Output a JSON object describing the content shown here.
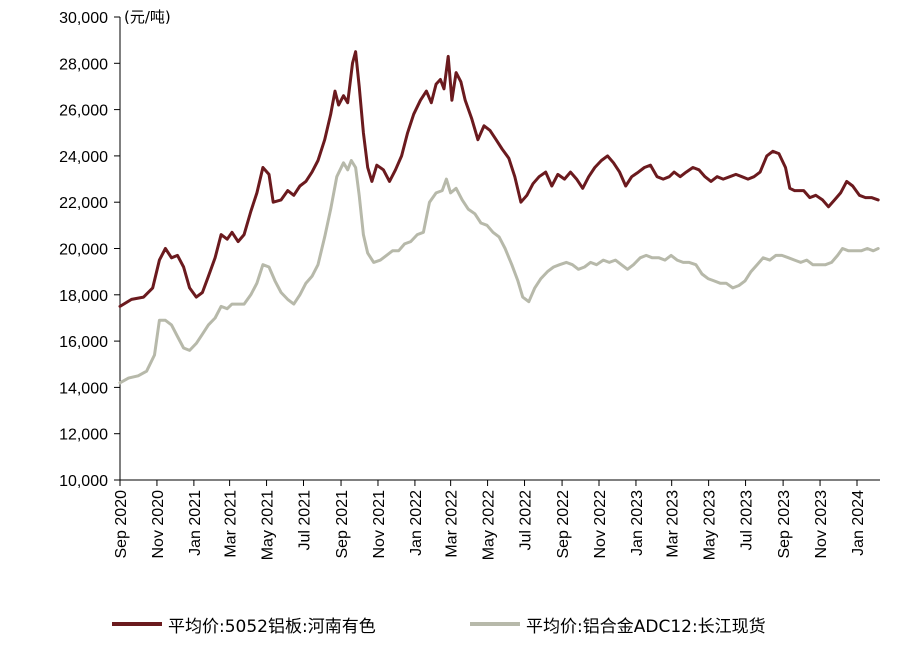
{
  "chart_data": {
    "type": "line",
    "unit_label": "(元/吨)",
    "ylim": [
      10000,
      30000
    ],
    "y_ticks": [
      10000,
      12000,
      14000,
      16000,
      18000,
      20000,
      22000,
      24000,
      26000,
      28000,
      30000
    ],
    "y_tick_labels": [
      "10,000",
      "12,000",
      "14,000",
      "16,000",
      "18,000",
      "20,000",
      "22,000",
      "24,000",
      "26,000",
      "28,000",
      "30,000"
    ],
    "x_ticks": [
      "2020-09",
      "2020-11",
      "2021-01",
      "2021-03",
      "2021-05",
      "2021-07",
      "2021-09",
      "2021-11",
      "2022-01",
      "2022-03",
      "2022-05",
      "2022-07",
      "2022-09",
      "2022-11",
      "2023-01",
      "2023-03",
      "2023-05",
      "2023-07",
      "2023-09",
      "2023-11",
      "2024-01"
    ],
    "x_tick_labels": [
      "Sep 2020",
      "Nov 2020",
      "Jan 2021",
      "Mar 2021",
      "May 2021",
      "Jul 2021",
      "Sep 2021",
      "Nov 2021",
      "Jan 2022",
      "Mar 2022",
      "May 2022",
      "Jul 2022",
      "Sep 2022",
      "Nov 2022",
      "Jan 2023",
      "Mar 2023",
      "May 2023",
      "Jul 2023",
      "Sep 2023",
      "Nov 2023",
      "Jan 2024"
    ],
    "legend_position": "bottom",
    "grid": false,
    "series": [
      {
        "name": "平均价:5052铝板:河南有色",
        "color": "#6b1a1e",
        "points": [
          [
            "2020-09-01",
            17500
          ],
          [
            "2020-09-20",
            17800
          ],
          [
            "2020-10-10",
            17900
          ],
          [
            "2020-10-25",
            18300
          ],
          [
            "2020-11-05",
            19500
          ],
          [
            "2020-11-15",
            20000
          ],
          [
            "2020-11-25",
            19600
          ],
          [
            "2020-12-05",
            19700
          ],
          [
            "2020-12-15",
            19200
          ],
          [
            "2020-12-25",
            18300
          ],
          [
            "2021-01-05",
            17900
          ],
          [
            "2021-01-15",
            18100
          ],
          [
            "2021-01-25",
            18800
          ],
          [
            "2021-02-05",
            19600
          ],
          [
            "2021-02-15",
            20600
          ],
          [
            "2021-02-25",
            20400
          ],
          [
            "2021-03-05",
            20700
          ],
          [
            "2021-03-15",
            20300
          ],
          [
            "2021-03-25",
            20600
          ],
          [
            "2021-04-05",
            21600
          ],
          [
            "2021-04-15",
            22400
          ],
          [
            "2021-04-25",
            23500
          ],
          [
            "2021-05-05",
            23200
          ],
          [
            "2021-05-12",
            22000
          ],
          [
            "2021-05-25",
            22100
          ],
          [
            "2021-06-05",
            22500
          ],
          [
            "2021-06-15",
            22300
          ],
          [
            "2021-06-25",
            22700
          ],
          [
            "2021-07-05",
            22900
          ],
          [
            "2021-07-15",
            23300
          ],
          [
            "2021-07-25",
            23800
          ],
          [
            "2021-08-05",
            24700
          ],
          [
            "2021-08-15",
            25800
          ],
          [
            "2021-08-22",
            26800
          ],
          [
            "2021-08-28",
            26200
          ],
          [
            "2021-09-05",
            26600
          ],
          [
            "2021-09-12",
            26300
          ],
          [
            "2021-09-20",
            28000
          ],
          [
            "2021-09-25",
            28500
          ],
          [
            "2021-10-01",
            27000
          ],
          [
            "2021-10-08",
            25000
          ],
          [
            "2021-10-15",
            23500
          ],
          [
            "2021-10-22",
            22900
          ],
          [
            "2021-10-30",
            23600
          ],
          [
            "2021-11-10",
            23400
          ],
          [
            "2021-11-20",
            22900
          ],
          [
            "2021-11-30",
            23400
          ],
          [
            "2021-12-10",
            24000
          ],
          [
            "2021-12-20",
            25000
          ],
          [
            "2021-12-30",
            25800
          ],
          [
            "2022-01-10",
            26400
          ],
          [
            "2022-01-20",
            26800
          ],
          [
            "2022-01-28",
            26300
          ],
          [
            "2022-02-05",
            27100
          ],
          [
            "2022-02-12",
            27300
          ],
          [
            "2022-02-18",
            26900
          ],
          [
            "2022-02-25",
            28300
          ],
          [
            "2022-03-03",
            26400
          ],
          [
            "2022-03-10",
            27600
          ],
          [
            "2022-03-18",
            27200
          ],
          [
            "2022-03-25",
            26400
          ],
          [
            "2022-04-05",
            25600
          ],
          [
            "2022-04-15",
            24700
          ],
          [
            "2022-04-25",
            25300
          ],
          [
            "2022-05-05",
            25100
          ],
          [
            "2022-05-15",
            24700
          ],
          [
            "2022-05-25",
            24300
          ],
          [
            "2022-06-05",
            23900
          ],
          [
            "2022-06-15",
            23100
          ],
          [
            "2022-06-25",
            22000
          ],
          [
            "2022-07-05",
            22300
          ],
          [
            "2022-07-15",
            22800
          ],
          [
            "2022-07-25",
            23100
          ],
          [
            "2022-08-05",
            23300
          ],
          [
            "2022-08-15",
            22700
          ],
          [
            "2022-08-25",
            23200
          ],
          [
            "2022-09-05",
            23000
          ],
          [
            "2022-09-15",
            23300
          ],
          [
            "2022-09-25",
            23000
          ],
          [
            "2022-10-05",
            22600
          ],
          [
            "2022-10-15",
            23100
          ],
          [
            "2022-10-25",
            23500
          ],
          [
            "2022-11-05",
            23800
          ],
          [
            "2022-11-15",
            24000
          ],
          [
            "2022-11-25",
            23700
          ],
          [
            "2022-12-05",
            23300
          ],
          [
            "2022-12-15",
            22700
          ],
          [
            "2022-12-25",
            23100
          ],
          [
            "2023-01-05",
            23300
          ],
          [
            "2023-01-15",
            23500
          ],
          [
            "2023-01-25",
            23600
          ],
          [
            "2023-02-05",
            23100
          ],
          [
            "2023-02-15",
            23000
          ],
          [
            "2023-02-25",
            23100
          ],
          [
            "2023-03-05",
            23300
          ],
          [
            "2023-03-15",
            23100
          ],
          [
            "2023-03-25",
            23300
          ],
          [
            "2023-04-05",
            23500
          ],
          [
            "2023-04-15",
            23400
          ],
          [
            "2023-04-25",
            23100
          ],
          [
            "2023-05-05",
            22900
          ],
          [
            "2023-05-15",
            23100
          ],
          [
            "2023-05-25",
            23000
          ],
          [
            "2023-06-05",
            23100
          ],
          [
            "2023-06-15",
            23200
          ],
          [
            "2023-06-25",
            23100
          ],
          [
            "2023-07-05",
            23000
          ],
          [
            "2023-07-15",
            23100
          ],
          [
            "2023-07-25",
            23300
          ],
          [
            "2023-08-05",
            24000
          ],
          [
            "2023-08-15",
            24200
          ],
          [
            "2023-08-25",
            24100
          ],
          [
            "2023-09-05",
            23500
          ],
          [
            "2023-09-12",
            22600
          ],
          [
            "2023-09-20",
            22500
          ],
          [
            "2023-10-05",
            22500
          ],
          [
            "2023-10-15",
            22200
          ],
          [
            "2023-10-25",
            22300
          ],
          [
            "2023-11-05",
            22100
          ],
          [
            "2023-11-15",
            21800
          ],
          [
            "2023-11-25",
            22100
          ],
          [
            "2023-12-05",
            22400
          ],
          [
            "2023-12-15",
            22900
          ],
          [
            "2023-12-25",
            22700
          ],
          [
            "2024-01-05",
            22300
          ],
          [
            "2024-01-15",
            22200
          ],
          [
            "2024-01-25",
            22200
          ],
          [
            "2024-02-05",
            22100
          ]
        ]
      },
      {
        "name": "平均价:铝合金ADC12:长江现货",
        "color": "#b7b9aa",
        "points": [
          [
            "2020-09-01",
            14200
          ],
          [
            "2020-09-15",
            14400
          ],
          [
            "2020-10-01",
            14500
          ],
          [
            "2020-10-15",
            14700
          ],
          [
            "2020-10-28",
            15400
          ],
          [
            "2020-11-05",
            16900
          ],
          [
            "2020-11-15",
            16900
          ],
          [
            "2020-11-25",
            16700
          ],
          [
            "2020-12-05",
            16200
          ],
          [
            "2020-12-15",
            15700
          ],
          [
            "2020-12-25",
            15600
          ],
          [
            "2021-01-05",
            15900
          ],
          [
            "2021-01-15",
            16300
          ],
          [
            "2021-01-25",
            16700
          ],
          [
            "2021-02-05",
            17000
          ],
          [
            "2021-02-15",
            17500
          ],
          [
            "2021-02-25",
            17400
          ],
          [
            "2021-03-05",
            17600
          ],
          [
            "2021-03-15",
            17600
          ],
          [
            "2021-03-25",
            17600
          ],
          [
            "2021-04-05",
            18000
          ],
          [
            "2021-04-15",
            18500
          ],
          [
            "2021-04-25",
            19300
          ],
          [
            "2021-05-05",
            19200
          ],
          [
            "2021-05-15",
            18600
          ],
          [
            "2021-05-25",
            18100
          ],
          [
            "2021-06-05",
            17800
          ],
          [
            "2021-06-15",
            17600
          ],
          [
            "2021-06-25",
            18000
          ],
          [
            "2021-07-05",
            18500
          ],
          [
            "2021-07-15",
            18800
          ],
          [
            "2021-07-25",
            19300
          ],
          [
            "2021-08-05",
            20500
          ],
          [
            "2021-08-15",
            21700
          ],
          [
            "2021-08-25",
            23100
          ],
          [
            "2021-09-05",
            23700
          ],
          [
            "2021-09-12",
            23400
          ],
          [
            "2021-09-18",
            23800
          ],
          [
            "2021-09-25",
            23500
          ],
          [
            "2021-10-01",
            22300
          ],
          [
            "2021-10-08",
            20600
          ],
          [
            "2021-10-15",
            19800
          ],
          [
            "2021-10-25",
            19400
          ],
          [
            "2021-11-05",
            19500
          ],
          [
            "2021-11-15",
            19700
          ],
          [
            "2021-11-25",
            19900
          ],
          [
            "2021-12-05",
            19900
          ],
          [
            "2021-12-15",
            20200
          ],
          [
            "2021-12-25",
            20300
          ],
          [
            "2022-01-05",
            20600
          ],
          [
            "2022-01-15",
            20700
          ],
          [
            "2022-01-25",
            22000
          ],
          [
            "2022-02-05",
            22400
          ],
          [
            "2022-02-15",
            22500
          ],
          [
            "2022-02-22",
            23000
          ],
          [
            "2022-03-01",
            22400
          ],
          [
            "2022-03-10",
            22600
          ],
          [
            "2022-03-20",
            22100
          ],
          [
            "2022-03-30",
            21700
          ],
          [
            "2022-04-10",
            21500
          ],
          [
            "2022-04-20",
            21100
          ],
          [
            "2022-04-30",
            21000
          ],
          [
            "2022-05-10",
            20700
          ],
          [
            "2022-05-20",
            20500
          ],
          [
            "2022-05-30",
            20000
          ],
          [
            "2022-06-10",
            19300
          ],
          [
            "2022-06-20",
            18600
          ],
          [
            "2022-06-28",
            17900
          ],
          [
            "2022-07-08",
            17700
          ],
          [
            "2022-07-18",
            18300
          ],
          [
            "2022-07-28",
            18700
          ],
          [
            "2022-08-08",
            19000
          ],
          [
            "2022-08-18",
            19200
          ],
          [
            "2022-08-28",
            19300
          ],
          [
            "2022-09-08",
            19400
          ],
          [
            "2022-09-18",
            19300
          ],
          [
            "2022-09-28",
            19100
          ],
          [
            "2022-10-08",
            19200
          ],
          [
            "2022-10-18",
            19400
          ],
          [
            "2022-10-28",
            19300
          ],
          [
            "2022-11-08",
            19500
          ],
          [
            "2022-11-18",
            19400
          ],
          [
            "2022-11-28",
            19500
          ],
          [
            "2022-12-08",
            19300
          ],
          [
            "2022-12-18",
            19100
          ],
          [
            "2022-12-28",
            19300
          ],
          [
            "2023-01-08",
            19600
          ],
          [
            "2023-01-18",
            19700
          ],
          [
            "2023-01-28",
            19600
          ],
          [
            "2023-02-08",
            19600
          ],
          [
            "2023-02-18",
            19500
          ],
          [
            "2023-02-28",
            19700
          ],
          [
            "2023-03-10",
            19500
          ],
          [
            "2023-03-20",
            19400
          ],
          [
            "2023-03-30",
            19400
          ],
          [
            "2023-04-10",
            19300
          ],
          [
            "2023-04-20",
            18900
          ],
          [
            "2023-04-30",
            18700
          ],
          [
            "2023-05-10",
            18600
          ],
          [
            "2023-05-20",
            18500
          ],
          [
            "2023-05-30",
            18500
          ],
          [
            "2023-06-10",
            18300
          ],
          [
            "2023-06-20",
            18400
          ],
          [
            "2023-06-30",
            18600
          ],
          [
            "2023-07-10",
            19000
          ],
          [
            "2023-07-20",
            19300
          ],
          [
            "2023-07-30",
            19600
          ],
          [
            "2023-08-10",
            19500
          ],
          [
            "2023-08-20",
            19700
          ],
          [
            "2023-08-30",
            19700
          ],
          [
            "2023-09-10",
            19600
          ],
          [
            "2023-09-20",
            19500
          ],
          [
            "2023-09-30",
            19400
          ],
          [
            "2023-10-10",
            19500
          ],
          [
            "2023-10-20",
            19300
          ],
          [
            "2023-10-30",
            19300
          ],
          [
            "2023-11-10",
            19300
          ],
          [
            "2023-11-20",
            19400
          ],
          [
            "2023-11-30",
            19700
          ],
          [
            "2023-12-08",
            20000
          ],
          [
            "2023-12-18",
            19900
          ],
          [
            "2023-12-28",
            19900
          ],
          [
            "2024-01-08",
            19900
          ],
          [
            "2024-01-18",
            20000
          ],
          [
            "2024-01-28",
            19900
          ],
          [
            "2024-02-05",
            20000
          ]
        ]
      }
    ]
  }
}
